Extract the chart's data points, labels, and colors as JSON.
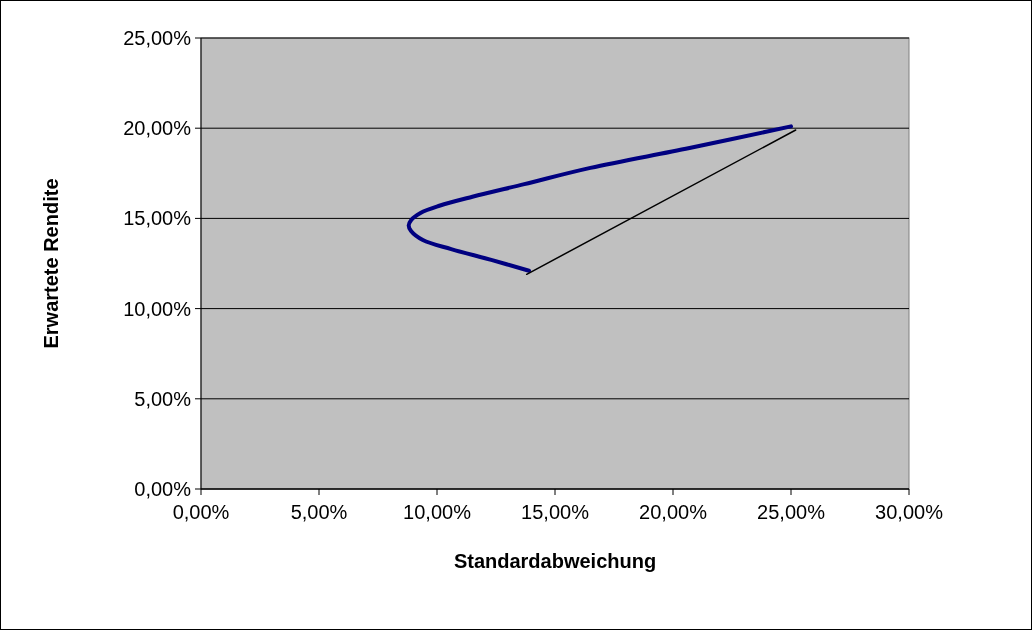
{
  "chart_data": {
    "type": "line",
    "xlabel": "Standardabweichung",
    "ylabel": "Erwartete Rendite",
    "xlim": [
      0,
      30
    ],
    "ylim": [
      0,
      25
    ],
    "xticks": [
      {
        "value": 0,
        "label": "0,00%"
      },
      {
        "value": 5,
        "label": "5,00%"
      },
      {
        "value": 10,
        "label": "10,00%"
      },
      {
        "value": 15,
        "label": "15,00%"
      },
      {
        "value": 20,
        "label": "20,00%"
      },
      {
        "value": 25,
        "label": "25,00%"
      },
      {
        "value": 30,
        "label": "30,00%"
      }
    ],
    "yticks": [
      {
        "value": 0,
        "label": "0,00%"
      },
      {
        "value": 5,
        "label": "5,00%"
      },
      {
        "value": 10,
        "label": "10,00%"
      },
      {
        "value": 15,
        "label": "15,00%"
      },
      {
        "value": 20,
        "label": "20,00%"
      },
      {
        "value": 25,
        "label": "25,00%"
      }
    ],
    "grid": "y",
    "marker": "none",
    "line_style": "solid",
    "series": [
      {
        "color": "#000080",
        "x": [
          25.0,
          20.7,
          16.5,
          13.7,
          11.5,
          10.1,
          9.3,
          8.9,
          8.8,
          8.9,
          9.4,
          10.6,
          12.3,
          13.9
        ],
        "values": [
          20.1,
          18.9,
          17.8,
          16.9,
          16.2,
          15.7,
          15.3,
          14.9,
          14.6,
          14.3,
          13.8,
          13.3,
          12.7,
          12.1
        ]
      },
      {
        "color": "#000000",
        "x": [
          13.8,
          25.2
        ],
        "values": [
          11.9,
          19.9
        ]
      }
    ]
  }
}
